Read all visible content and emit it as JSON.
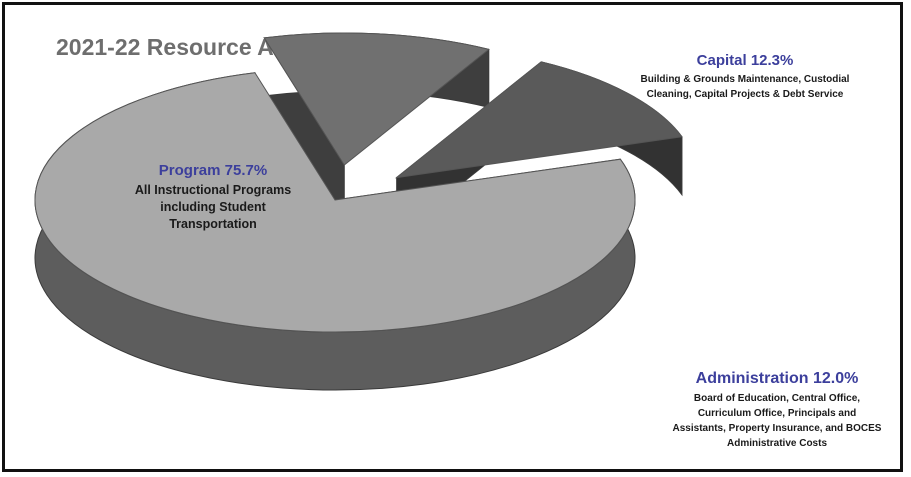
{
  "chart_data": {
    "type": "pie",
    "title": "2021-22 Resource Allocation",
    "slices": [
      {
        "name": "Program",
        "value": 75.7,
        "label": "Program 75.7%",
        "description": "All Instructional Programs including Student Transportation",
        "color": "#a9a9a9"
      },
      {
        "name": "Capital",
        "value": 12.3,
        "label": "Capital 12.3%",
        "description": "Building & Grounds Maintenance, Custodial Cleaning, Capital Projects & Debt Service",
        "color": "#707070"
      },
      {
        "name": "Administration",
        "value": 12.0,
        "label": "Administration 12.0%",
        "description": "Board of Education, Central Office, Curriculum Office, Principals and Assistants, Property Insurance, and BOCES Administrative Costs",
        "color": "#5a5a5a"
      }
    ],
    "style": "3d-exploded"
  }
}
